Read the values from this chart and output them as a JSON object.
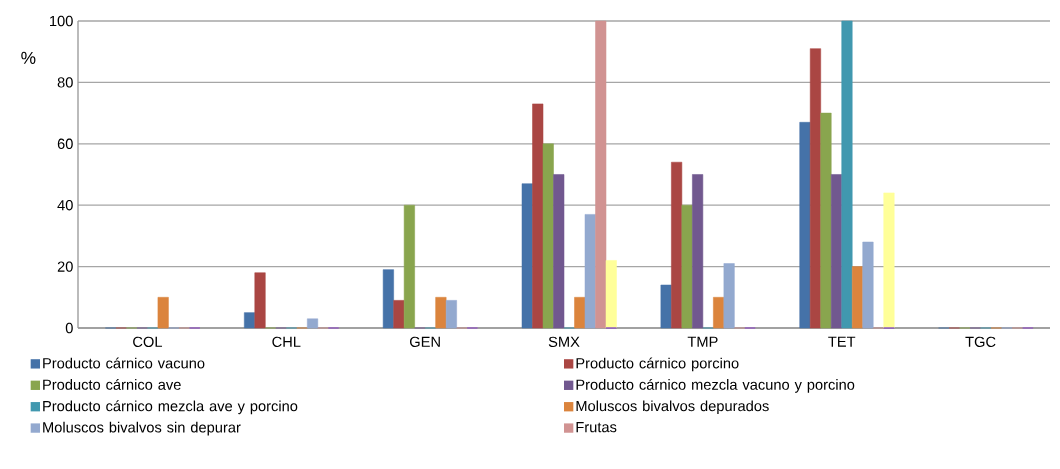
{
  "chart_data": {
    "type": "bar",
    "ylabel": "%",
    "categories": [
      "COL",
      "CHL",
      "GEN",
      "SMX",
      "TMP",
      "TET",
      "TGC"
    ],
    "series": [
      {
        "name": "Producto cárnico vacuno",
        "color": "#4572a8",
        "values": [
          0,
          5,
          19,
          47,
          14,
          67,
          0
        ]
      },
      {
        "name": "Producto cárnico porcino",
        "color": "#aa4643",
        "values": [
          0,
          18,
          9,
          73,
          54,
          91,
          0
        ]
      },
      {
        "name": "Producto cárnico ave",
        "color": "#89a54e",
        "values": [
          0,
          0,
          40,
          60,
          40,
          70,
          0
        ]
      },
      {
        "name": "Producto cárnico mezcla vacuno y porcino",
        "color": "#71588f",
        "values": [
          0,
          0,
          0,
          50,
          50,
          50,
          0
        ]
      },
      {
        "name": "Producto cárnico mezcla ave y porcino",
        "color": "#4198af",
        "values": [
          0,
          0,
          0,
          0,
          0,
          100,
          0
        ]
      },
      {
        "name": "Moluscos bivalvos depurados",
        "color": "#db843d",
        "values": [
          10,
          0,
          10,
          10,
          10,
          20,
          0
        ]
      },
      {
        "name": "Moluscos bivalvos sin depurar",
        "color": "#93a9cf",
        "values": [
          0,
          3,
          9,
          37,
          21,
          28,
          0
        ]
      },
      {
        "name": "Frutas",
        "color": "#d19392",
        "values": [
          0,
          0,
          0,
          100,
          0,
          0,
          0
        ]
      },
      {
        "color": "#ffff99",
        "values": [
          0,
          0,
          0,
          22,
          0,
          44,
          0
        ]
      },
      {
        "color": "#9a8cb0",
        "values": [
          0,
          0,
          0,
          0,
          0,
          0,
          0
        ]
      },
      {
        "color": "#7b2fd0",
        "values": [
          0,
          0,
          0,
          0,
          0,
          0,
          0
        ]
      }
    ],
    "ylim": [
      0,
      100
    ],
    "yticks": [
      0,
      20,
      40,
      60,
      80,
      100
    ],
    "grid": "y",
    "legend": "bottom"
  }
}
